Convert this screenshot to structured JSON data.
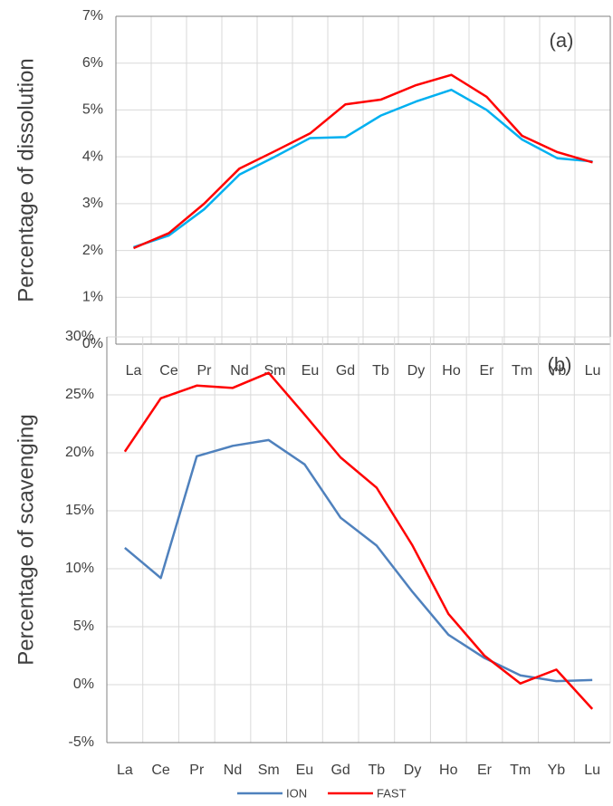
{
  "chart_data": [
    {
      "type": "line",
      "y_label": "Percentage of dissolution",
      "annotation": "(a)",
      "categories": [
        "La",
        "Ce",
        "Pr",
        "Nd",
        "Sm",
        "Eu",
        "Gd",
        "Tb",
        "Dy",
        "Ho",
        "Er",
        "Tm",
        "Yb",
        "Lu"
      ],
      "series": [
        {
          "color": "#00b0f0",
          "values": [
            2.07,
            2.32,
            2.88,
            3.62,
            4.0,
            4.4,
            4.42,
            4.88,
            5.18,
            5.43,
            5.0,
            4.37,
            3.97,
            3.9
          ]
        },
        {
          "color": "#ff0000",
          "values": [
            2.05,
            2.37,
            3.0,
            3.75,
            4.12,
            4.5,
            5.12,
            5.22,
            5.53,
            5.75,
            5.28,
            4.45,
            4.1,
            3.88
          ]
        }
      ],
      "ylim": [
        0,
        7
      ],
      "yticks": [
        {
          "value": 0,
          "label": "0%"
        },
        {
          "value": 1,
          "label": "1%"
        },
        {
          "value": 2,
          "label": "2%"
        },
        {
          "value": 3,
          "label": "3%"
        },
        {
          "value": 4,
          "label": "4%"
        },
        {
          "value": 5,
          "label": "5%"
        },
        {
          "value": 6,
          "label": "6%"
        },
        {
          "value": 7,
          "label": "7%"
        }
      ],
      "grid": true
    },
    {
      "type": "line",
      "y_label": "Percentage of scavenging",
      "annotation": "(b)",
      "categories": [
        "La",
        "Ce",
        "Pr",
        "Nd",
        "Sm",
        "Eu",
        "Gd",
        "Tb",
        "Dy",
        "Ho",
        "Er",
        "Tm",
        "Yb",
        "Lu"
      ],
      "series": [
        {
          "name": "ION",
          "color": "#4f81bd",
          "values": [
            11.8,
            9.2,
            19.7,
            20.6,
            21.1,
            19.0,
            14.4,
            12.0,
            8.0,
            4.3,
            2.3,
            0.8,
            0.3,
            0.4
          ]
        },
        {
          "name": "FAST",
          "color": "#ff0000",
          "values": [
            20.1,
            24.7,
            25.8,
            25.6,
            26.9,
            23.3,
            19.6,
            17.0,
            12.0,
            6.1,
            2.5,
            0.1,
            1.3,
            -2.1
          ]
        }
      ],
      "ylim": [
        -5,
        30
      ],
      "yticks": [
        {
          "value": -5,
          "label": "-5%"
        },
        {
          "value": 0,
          "label": "0%"
        },
        {
          "value": 5,
          "label": "5%"
        },
        {
          "value": 10,
          "label": "10%"
        },
        {
          "value": 15,
          "label": "15%"
        },
        {
          "value": 20,
          "label": "20%"
        },
        {
          "value": 25,
          "label": "25%"
        },
        {
          "value": 30,
          "label": "30%"
        }
      ],
      "grid": true,
      "legend": "bottom"
    }
  ]
}
